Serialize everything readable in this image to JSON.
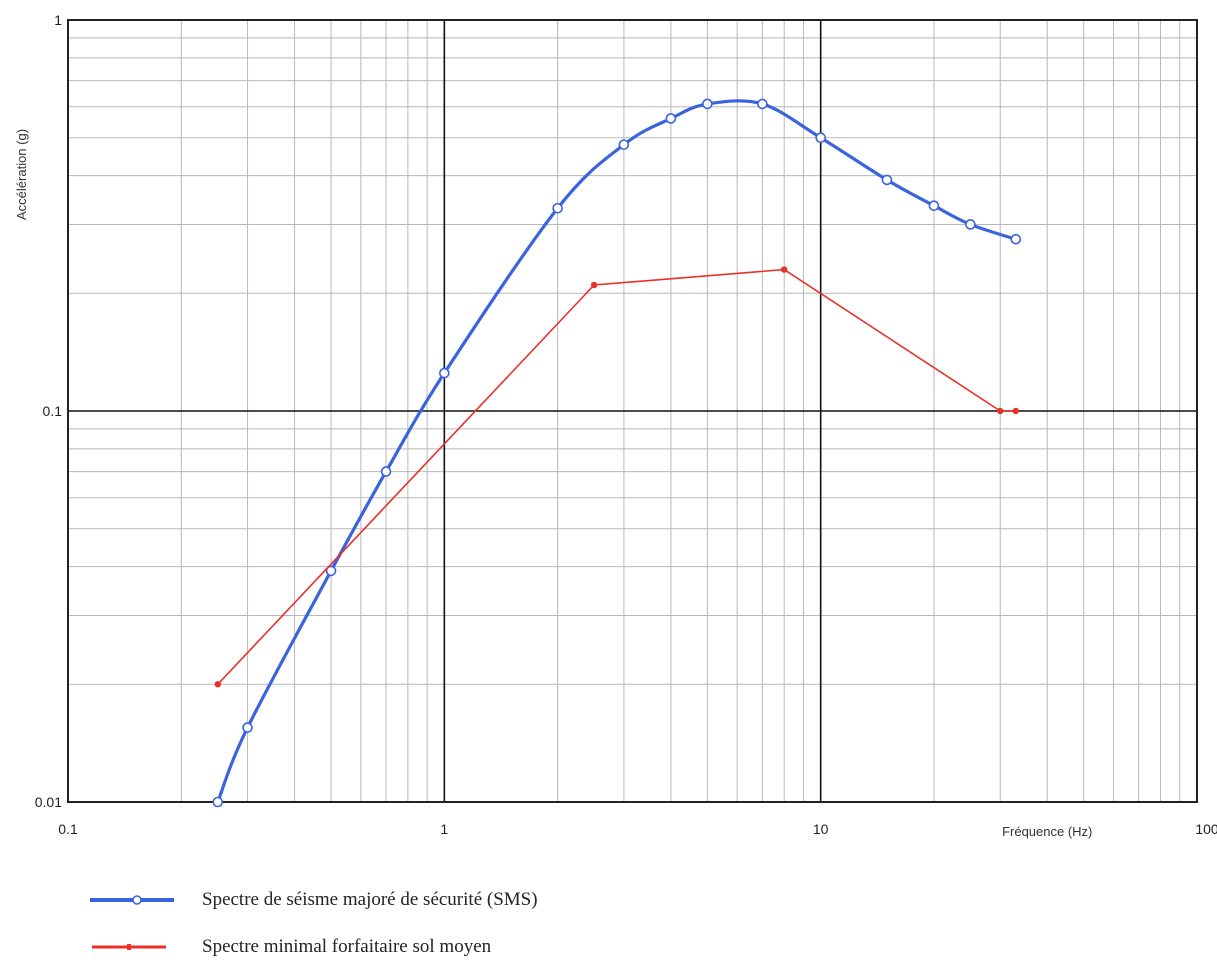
{
  "chart_data": {
    "type": "line",
    "xscale": "log",
    "yscale": "log",
    "xlim": [
      0.1,
      100
    ],
    "ylim": [
      0.01,
      1
    ],
    "xlabel": "Fréquence (Hz)",
    "ylabel": "Accélération (g)",
    "title": "",
    "grid": true,
    "xticks": [
      {
        "value": 0.1,
        "label": "0.1"
      },
      {
        "value": 1,
        "label": "1"
      },
      {
        "value": 10,
        "label": "10"
      },
      {
        "value": 100,
        "label": "100"
      }
    ],
    "yticks": [
      {
        "value": 0.01,
        "label": "0.01"
      },
      {
        "value": 0.1,
        "label": "0.1"
      },
      {
        "value": 1,
        "label": "1"
      }
    ],
    "series": [
      {
        "name": "Spectre de séisme majoré de sécurité (SMS)",
        "color": "#3a63e0",
        "marker": "open-circle",
        "smooth": true,
        "points": [
          {
            "x": 0.25,
            "y": 0.01
          },
          {
            "x": 0.3,
            "y": 0.0155
          },
          {
            "x": 0.5,
            "y": 0.039
          },
          {
            "x": 0.7,
            "y": 0.07
          },
          {
            "x": 1,
            "y": 0.125
          },
          {
            "x": 2,
            "y": 0.33
          },
          {
            "x": 3,
            "y": 0.48
          },
          {
            "x": 4,
            "y": 0.56
          },
          {
            "x": 5,
            "y": 0.61
          },
          {
            "x": 7,
            "y": 0.61
          },
          {
            "x": 10,
            "y": 0.5
          },
          {
            "x": 15,
            "y": 0.39
          },
          {
            "x": 20,
            "y": 0.335
          },
          {
            "x": 25,
            "y": 0.3
          },
          {
            "x": 33,
            "y": 0.275
          }
        ],
        "markers": [
          {
            "x": 0.25,
            "y": 0.01
          },
          {
            "x": 0.3,
            "y": 0.0155
          },
          {
            "x": 0.5,
            "y": 0.039
          },
          {
            "x": 0.7,
            "y": 0.07
          },
          {
            "x": 1,
            "y": 0.125
          },
          {
            "x": 2,
            "y": 0.33
          },
          {
            "x": 3,
            "y": 0.48
          },
          {
            "x": 4,
            "y": 0.56
          },
          {
            "x": 5,
            "y": 0.61
          },
          {
            "x": 7,
            "y": 0.61
          },
          {
            "x": 10,
            "y": 0.5
          },
          {
            "x": 15,
            "y": 0.39
          },
          {
            "x": 20,
            "y": 0.335
          },
          {
            "x": 25,
            "y": 0.3
          },
          {
            "x": 33,
            "y": 0.275
          }
        ]
      },
      {
        "name": "Spectre minimal forfaitaire sol moyen",
        "color": "#e8312a",
        "marker": "filled-dot",
        "smooth": false,
        "points": [
          {
            "x": 0.25,
            "y": 0.02
          },
          {
            "x": 2.5,
            "y": 0.21
          },
          {
            "x": 8,
            "y": 0.23
          },
          {
            "x": 30,
            "y": 0.1
          },
          {
            "x": 33,
            "y": 0.1
          }
        ],
        "markers": [
          {
            "x": 0.25,
            "y": 0.02
          },
          {
            "x": 2.5,
            "y": 0.21
          },
          {
            "x": 8,
            "y": 0.23
          },
          {
            "x": 30,
            "y": 0.1
          },
          {
            "x": 33,
            "y": 0.1
          }
        ]
      }
    ],
    "legend": {
      "position": "bottom-left",
      "entries": [
        {
          "label": "Spectre de séisme majoré de sécurité (SMS)",
          "color": "#3a63e0",
          "marker": "open-circle"
        },
        {
          "label": "Spectre minimal forfaitaire sol moyen",
          "color": "#e8312a",
          "marker": "filled-dot"
        }
      ]
    }
  }
}
